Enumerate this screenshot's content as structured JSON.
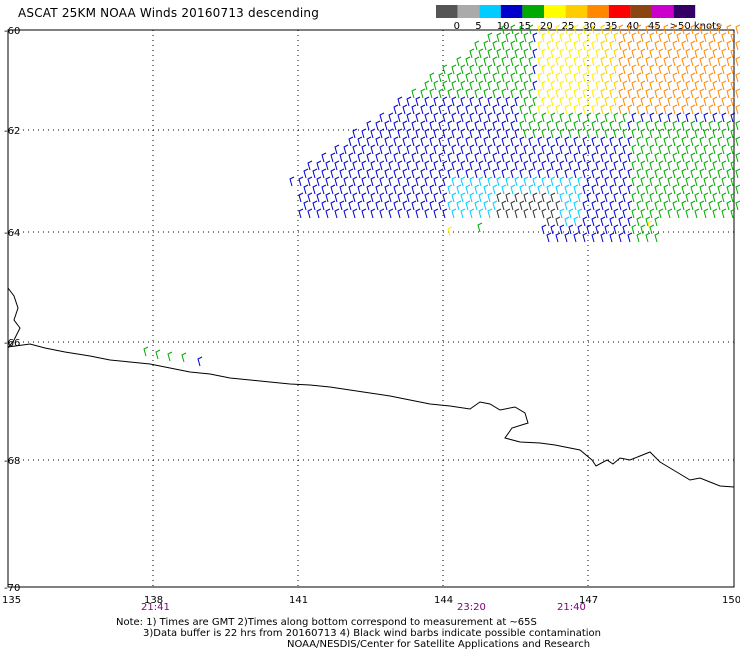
{
  "title": "ASCAT 25KM NOAA Winds 20160713 descending",
  "legend": {
    "labels": [
      "0",
      "5",
      "10",
      "15",
      "20",
      "25",
      "30",
      "35",
      "40",
      "45",
      ">50 knots"
    ],
    "colors": [
      "#555555",
      "#aaaaaa",
      "#00ccff",
      "#0000cc",
      "#00aa00",
      "#ffff00",
      "#ffcc00",
      "#ff8800",
      "#ff0000",
      "#8b4513",
      "#cc00cc",
      "#330066"
    ]
  },
  "lat_labels": [
    "-60",
    "-62",
    "-64",
    "-66",
    "-68",
    "-70"
  ],
  "lon_labels": [
    "135",
    "138",
    "141",
    "144",
    "147",
    "150"
  ],
  "pass_times": [
    "21:41",
    "23:20",
    "21:40"
  ],
  "notes": [
    "Note: 1) Times are GMT 2)Times along bottom correspond to measurement at ~65S",
    "3)Data buffer is 22 hrs from 20160713 4) Black wind barbs indicate possible contamination",
    "NOAA/NESDIS/Center for Satellite Applications and Research"
  ]
}
